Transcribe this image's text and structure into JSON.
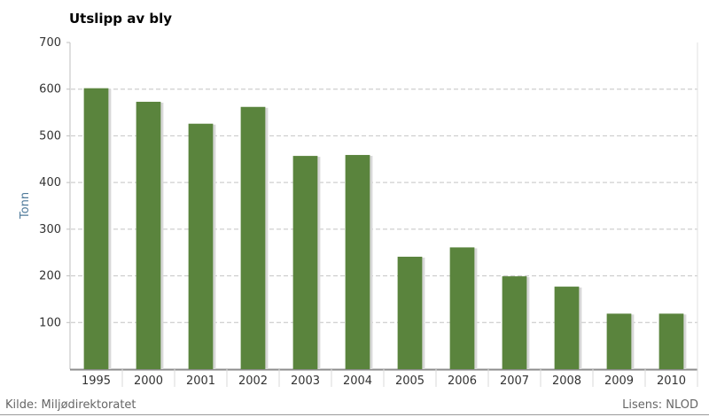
{
  "chart_data": {
    "type": "bar",
    "title": "Utslipp av bly",
    "xlabel": "",
    "ylabel": "Tonn",
    "categories": [
      "1995",
      "2000",
      "2001",
      "2002",
      "2003",
      "2004",
      "2005",
      "2006",
      "2007",
      "2008",
      "2009",
      "2010"
    ],
    "values": [
      602,
      573,
      526,
      562,
      457,
      459,
      241,
      261,
      199,
      177,
      119,
      119
    ],
    "ylim": [
      0,
      700
    ],
    "yticks": [
      100,
      200,
      300,
      400,
      500,
      600,
      700
    ],
    "grid": true,
    "bar_color": "#5a843d"
  },
  "footer": {
    "source": "Kilde: Miljødirektoratet",
    "license": "Lisens: NLOD"
  }
}
